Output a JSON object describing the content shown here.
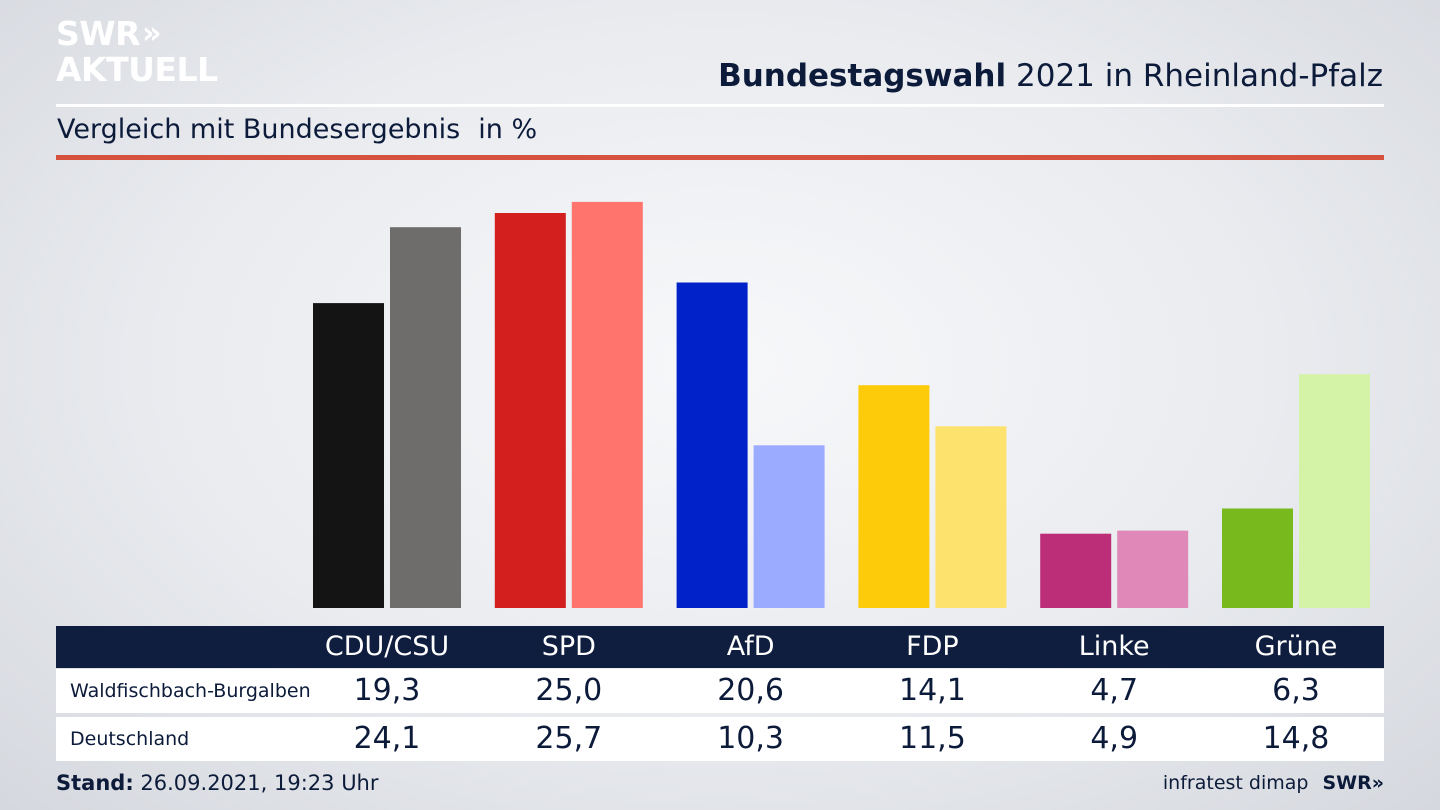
{
  "brand": {
    "line1": "SWR",
    "line1_mark": "»",
    "line2": "AKTUELL"
  },
  "header": {
    "title_bold": "Bundestagswahl",
    "title_rest": "2021 in Rheinland-Pfalz"
  },
  "subheader": {
    "text": "Vergleich mit Bundesergebnis",
    "unit": "in %"
  },
  "colors": {
    "rule_red": "#d6523f",
    "table_header_bg": "#0f1d3e",
    "text_dark": "#0c1b3a"
  },
  "chart_data": {
    "type": "bar",
    "categories": [
      "CDU/CSU",
      "SPD",
      "AfD",
      "FDP",
      "Linke",
      "Grüne"
    ],
    "series": [
      {
        "name": "Waldfischbach-Burgalben",
        "values": [
          19.3,
          25.0,
          20.6,
          14.1,
          4.7,
          6.3
        ],
        "colors": [
          "#141414",
          "#d41f1f",
          "#0022c8",
          "#fecb0a",
          "#bc2f78",
          "#78ba1e"
        ]
      },
      {
        "name": "Deutschland",
        "values": [
          24.1,
          25.7,
          10.3,
          11.5,
          4.9,
          14.8
        ],
        "colors": [
          "#6f6d6b",
          "#ff746c",
          "#9babff",
          "#fde26e",
          "#e088b8",
          "#d4f3a7"
        ]
      }
    ],
    "value_labels": [
      [
        "19,3",
        "25,0",
        "20,6",
        "14,1",
        "4,7",
        "6,3"
      ],
      [
        "24,1",
        "25,7",
        "10,3",
        "11,5",
        "4,9",
        "14,8"
      ]
    ],
    "ylim": [
      0,
      26.5
    ],
    "grid": false,
    "legend": "table below chart"
  },
  "footer": {
    "stand_label": "Stand:",
    "stand_value": "26.09.2021, 19:23 Uhr",
    "source": "infratest dimap",
    "source_logo": "SWR»"
  }
}
